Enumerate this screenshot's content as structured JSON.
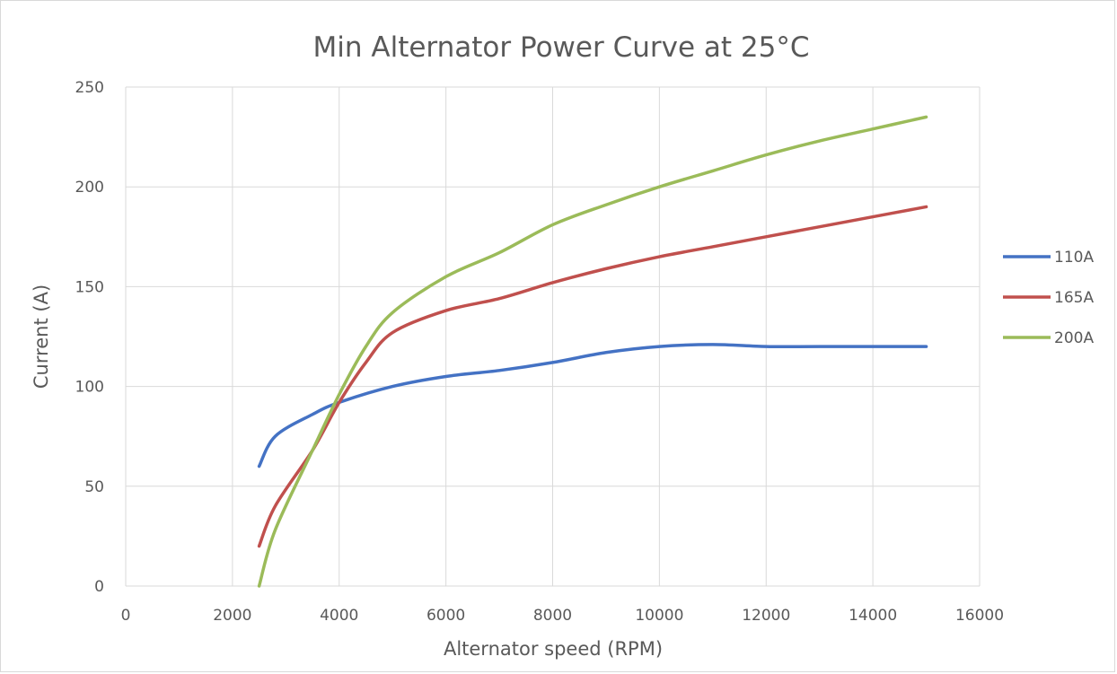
{
  "chart_data": {
    "type": "line",
    "title": "Min Alternator Power Curve at 25°C",
    "xlabel": "Alternator speed (RPM)",
    "ylabel": "Current (A)",
    "xlim": [
      0,
      16000
    ],
    "ylim": [
      0,
      250
    ],
    "x_ticks": [
      0,
      2000,
      4000,
      6000,
      8000,
      10000,
      12000,
      14000,
      16000
    ],
    "y_ticks": [
      0,
      50,
      100,
      150,
      200,
      250
    ],
    "grid": true,
    "legend_position": "right",
    "series": [
      {
        "name": "110A",
        "color": "#4472c4",
        "points": [
          [
            2500,
            60
          ],
          [
            2800,
            75
          ],
          [
            3500,
            86
          ],
          [
            4000,
            92
          ],
          [
            5000,
            100
          ],
          [
            6000,
            105
          ],
          [
            7000,
            108
          ],
          [
            8000,
            112
          ],
          [
            9000,
            117
          ],
          [
            10000,
            120
          ],
          [
            11000,
            121
          ],
          [
            12000,
            120
          ],
          [
            13000,
            120
          ],
          [
            15000,
            120
          ]
        ]
      },
      {
        "name": "165A",
        "color": "#c0504d",
        "points": [
          [
            2500,
            20
          ],
          [
            2800,
            40
          ],
          [
            3500,
            68
          ],
          [
            4000,
            92
          ],
          [
            4500,
            112
          ],
          [
            5000,
            127
          ],
          [
            6000,
            138
          ],
          [
            7000,
            144
          ],
          [
            8000,
            152
          ],
          [
            9000,
            159
          ],
          [
            10000,
            165
          ],
          [
            11000,
            170
          ],
          [
            12000,
            175
          ],
          [
            13000,
            180
          ],
          [
            14000,
            185
          ],
          [
            15000,
            190
          ]
        ]
      },
      {
        "name": "200A",
        "color": "#9bbb59",
        "points": [
          [
            2500,
            0
          ],
          [
            2800,
            28
          ],
          [
            3500,
            68
          ],
          [
            4000,
            96
          ],
          [
            4500,
            120
          ],
          [
            5000,
            137
          ],
          [
            6000,
            155
          ],
          [
            7000,
            167
          ],
          [
            8000,
            181
          ],
          [
            9000,
            191
          ],
          [
            10000,
            200
          ],
          [
            11000,
            208
          ],
          [
            12000,
            216
          ],
          [
            13000,
            223
          ],
          [
            14000,
            229
          ],
          [
            15000,
            235
          ]
        ]
      }
    ]
  }
}
